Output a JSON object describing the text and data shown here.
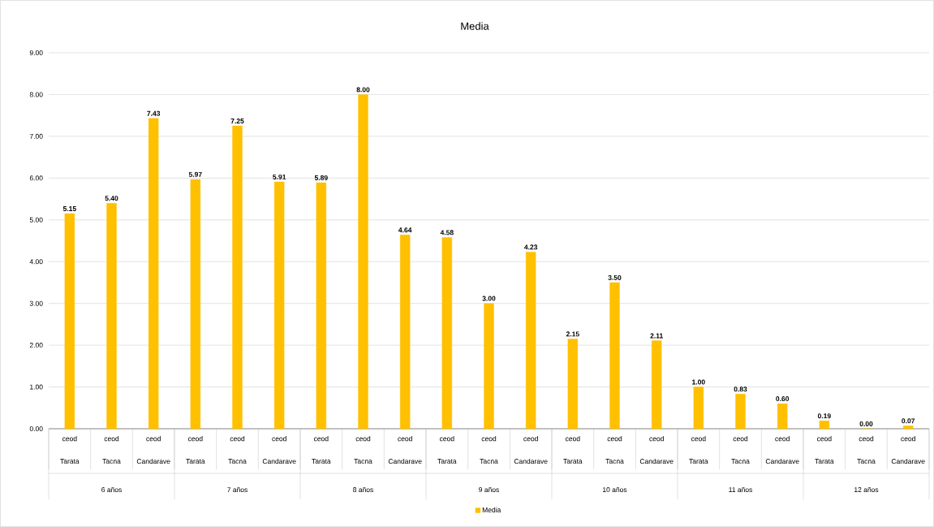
{
  "chart_data": {
    "type": "bar",
    "title": "Media",
    "categories": [
      "ceod",
      "ceod",
      "ceod",
      "ceod",
      "ceod",
      "ceod",
      "ceod",
      "ceod",
      "ceod",
      "ceod",
      "ceod",
      "ceod",
      "ceod",
      "ceod",
      "ceod",
      "ceod",
      "ceod",
      "ceod",
      "ceod",
      "ceod",
      "ceod"
    ],
    "series": [
      {
        "name": "Media",
        "color": "#ffc000",
        "values": [
          5.15,
          5.4,
          7.43,
          5.97,
          7.25,
          5.91,
          5.89,
          8.0,
          4.64,
          4.58,
          3.0,
          4.23,
          2.15,
          3.5,
          2.11,
          1.0,
          0.83,
          0.6,
          0.19,
          0.0,
          0.07
        ],
        "value_labels": [
          "5.15",
          "5.40",
          "7.43",
          "5.97",
          "7.25",
          "5.91",
          "5.89",
          "8.00",
          "4.64",
          "4.58",
          "3.00",
          "4.23",
          "2.15",
          "3.50",
          "2.11",
          "1.00",
          "0.83",
          "0.60",
          "0.19",
          "0.00",
          "0.07"
        ]
      }
    ],
    "annotations": [
      "Tarata",
      "Tacna",
      "Candarave",
      "Tarata",
      "Tacna",
      "Candarave",
      "Tarata",
      "Tacna",
      "Candarave",
      "Tarata",
      "Tacna",
      "Candarave",
      "Tarata",
      "Tacna",
      "Candarave",
      "Tarata",
      "Tacna",
      "Candarave",
      "Tarata",
      "Tacna",
      "Candarave",
      "6 años",
      "7 años",
      "8 años",
      "9 años",
      "10 años",
      "11 años",
      "12 años"
    ],
    "ylim": [
      0,
      9
    ],
    "yticks": [
      {
        "value": 0,
        "label": "0.00"
      },
      {
        "value": 1,
        "label": "1.00"
      },
      {
        "value": 2,
        "label": "2.00"
      },
      {
        "value": 3,
        "label": "3.00"
      },
      {
        "value": 4,
        "label": "4.00"
      },
      {
        "value": 5,
        "label": "5.00"
      },
      {
        "value": 6,
        "label": "6.00"
      },
      {
        "value": 7,
        "label": "7.00"
      },
      {
        "value": 8,
        "label": "8.00"
      },
      {
        "value": 9,
        "label": "9.00"
      }
    ],
    "grid": "y",
    "legend": "bottom"
  }
}
